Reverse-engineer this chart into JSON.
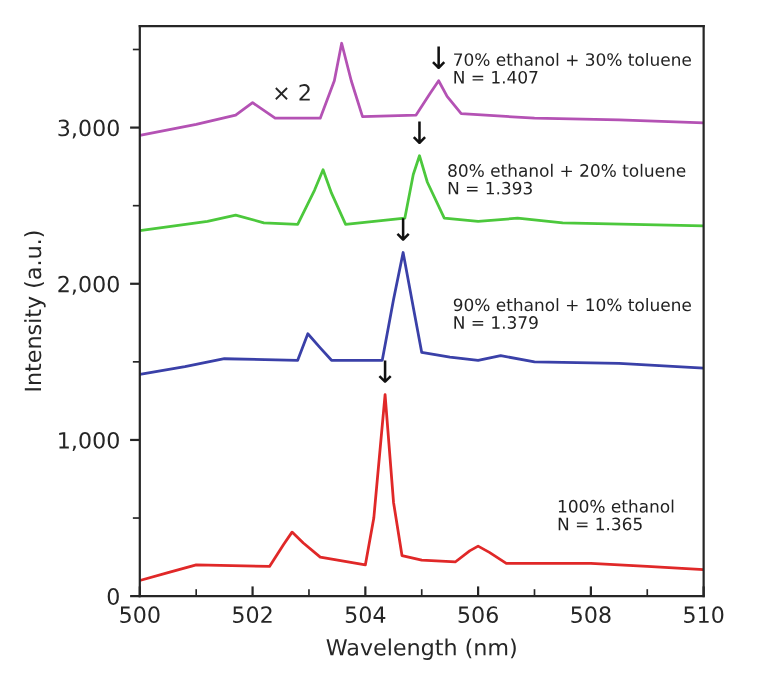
{
  "chart_data": {
    "type": "line",
    "xlabel": "Wavelength (nm)",
    "ylabel": "Intensity (a.u.)",
    "xlim": [
      500,
      510
    ],
    "xticks": [
      500,
      502,
      504,
      506,
      508,
      510
    ],
    "ylim": [
      0,
      3650
    ],
    "yticks": [
      0,
      {
        "value": 1000,
        "label": "1,000"
      },
      {
        "value": 2000,
        "label": "2,000"
      },
      {
        "value": 3000,
        "label": "3,000"
      }
    ],
    "grid": false,
    "legend": false,
    "marker": "none",
    "line_style": "solid",
    "series": [
      {
        "name": "70% ethanol + 30% toluene\nN = 1.407",
        "color": "#b452b4",
        "x": [
          500,
          501,
          501.7,
          502.0,
          502.4,
          503.2,
          503.45,
          503.58,
          503.75,
          503.95,
          504.9,
          505.15,
          505.3,
          505.45,
          505.7,
          507,
          508.5,
          510
        ],
        "values": [
          2950,
          3020,
          3080,
          3160,
          3060,
          3060,
          3300,
          3540,
          3300,
          3070,
          3080,
          3220,
          3300,
          3200,
          3090,
          3060,
          3050,
          3030
        ]
      },
      {
        "name": "80% ethanol + 20% toluene\nN = 1.393",
        "color": "#4cc83c",
        "x": [
          500,
          501.2,
          501.7,
          502.2,
          502.8,
          503.1,
          503.25,
          503.4,
          503.65,
          504.7,
          504.85,
          504.96,
          505.1,
          505.4,
          506.0,
          506.7,
          507.5,
          510
        ],
        "values": [
          2340,
          2400,
          2440,
          2390,
          2380,
          2600,
          2730,
          2580,
          2380,
          2420,
          2700,
          2820,
          2650,
          2420,
          2400,
          2420,
          2390,
          2370
        ]
      },
      {
        "name": "90% ethanol + 10% toluene\nN = 1.379",
        "color": "#3a40a8",
        "x": [
          500,
          500.8,
          501.5,
          502.8,
          502.98,
          503.2,
          503.4,
          504.3,
          504.5,
          504.67,
          504.85,
          505.0,
          505.5,
          506.0,
          506.4,
          507.0,
          508.5,
          510
        ],
        "values": [
          1420,
          1470,
          1520,
          1510,
          1680,
          1590,
          1510,
          1510,
          1900,
          2200,
          1850,
          1560,
          1530,
          1510,
          1540,
          1500,
          1490,
          1460
        ]
      },
      {
        "name": "100% ethanol\nN = 1.365",
        "color": "#e02828",
        "x": [
          500,
          500.5,
          501,
          502.3,
          502.55,
          502.7,
          502.9,
          503.2,
          504.0,
          504.15,
          504.35,
          504.5,
          504.65,
          505,
          505.6,
          505.85,
          506.0,
          506.2,
          506.5,
          508,
          509,
          510
        ],
        "values": [
          100,
          150,
          200,
          190,
          330,
          410,
          340,
          250,
          200,
          500,
          1290,
          600,
          260,
          230,
          220,
          290,
          320,
          280,
          210,
          210,
          190,
          170
        ]
      }
    ],
    "annotations": [
      "× 2",
      {
        "text": "↓",
        "x": 505.3,
        "y": 3300
      },
      {
        "text": "↓",
        "x": 504.96,
        "y": 2820
      },
      {
        "text": "↓",
        "x": 504.67,
        "y": 2200
      },
      {
        "text": "↓",
        "x": 504.35,
        "y": 1290
      }
    ]
  }
}
